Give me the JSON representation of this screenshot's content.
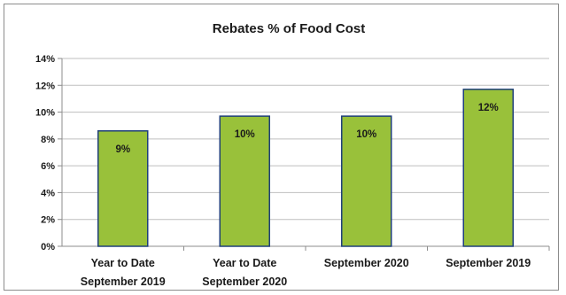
{
  "chart_data": {
    "type": "bar",
    "title": "Rebates % of Food Cost",
    "categories": [
      [
        "Year to Date",
        "September 2019"
      ],
      [
        "Year to Date",
        "September 2020"
      ],
      [
        "September 2020"
      ],
      [
        "September 2019"
      ]
    ],
    "values": [
      8.6,
      9.7,
      9.7,
      11.7
    ],
    "data_labels": [
      "9%",
      "10%",
      "10%",
      "12%"
    ],
    "ylim": [
      0,
      14
    ],
    "yticks": [
      0,
      2,
      4,
      6,
      8,
      10,
      12,
      14
    ],
    "ytick_labels": [
      "0%",
      "2%",
      "4%",
      "6%",
      "8%",
      "10%",
      "12%",
      "14%"
    ],
    "grid": true,
    "legend": "none",
    "colors": {
      "bar_fill": "#99c13a",
      "bar_stroke": "#1f3f7a",
      "grid": "#bfbfbf",
      "axis": "#8c8c8c"
    }
  }
}
